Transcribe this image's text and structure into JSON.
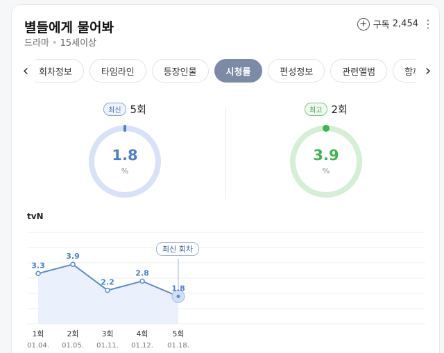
{
  "header": {
    "title": "별들에게 물어봐",
    "genre": "드라마",
    "rating_age": "15세이상",
    "subscribe_label": "구독",
    "subscribe_count": "2,454",
    "more_icon": "kebab-icon"
  },
  "tabs": [
    {
      "label": "회차정보"
    },
    {
      "label": "타임라인"
    },
    {
      "label": "등장인물"
    },
    {
      "label": "시청률",
      "active": true
    },
    {
      "label": "편성정보"
    },
    {
      "label": "관련앨범"
    },
    {
      "label": "함께 볼"
    }
  ],
  "ratings": {
    "latest": {
      "badge": "최신",
      "episode": "5회",
      "value": "1.8",
      "unit": "%",
      "color": "#4a7fd0",
      "ring_color": "#d7e2f8"
    },
    "highest": {
      "badge": "최고",
      "episode": "2회",
      "value": "3.9",
      "unit": "%",
      "color": "#3fb550",
      "ring_color": "#d4efd6"
    }
  },
  "chart_data": {
    "type": "line",
    "channel": "tvN",
    "latest_tag": "최신 회차",
    "categories": [
      "1회",
      "2회",
      "3회",
      "4회",
      "5회"
    ],
    "dates": [
      "01.04.",
      "01.05.",
      "01.11.",
      "01.12.",
      "01.18."
    ],
    "values": [
      3.3,
      3.9,
      2.2,
      2.8,
      1.8
    ],
    "ylim": [
      0,
      6
    ],
    "grid": true,
    "line_color": "#5b8bd0",
    "fill_color": "#e6eefb"
  }
}
